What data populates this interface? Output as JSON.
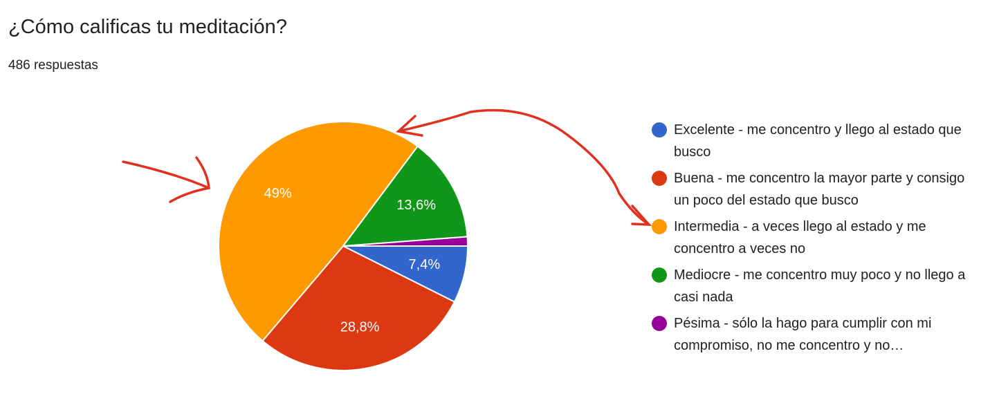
{
  "chart_data": {
    "type": "pie",
    "title": "¿Cómo calificas tu meditación?",
    "subtitle": "486 respuestas",
    "categories": [
      "Excelente - me concentro y llego al estado que busco",
      "Buena - me concentro la mayor parte y consigo un poco del estado que busco",
      "Intermedia - a veces llego al estado y me concentro a veces no",
      "Mediocre - me concentro muy poco y no llego a casi nada",
      "Pésima - sólo la hago para cumplir con mi compromiso, no me concentro y no…"
    ],
    "values": [
      7.4,
      28.8,
      49,
      13.6,
      1.2
    ],
    "value_labels": [
      "7,4%",
      "28,8%",
      "49%",
      "13,6%",
      null
    ],
    "colors": [
      "#3366cc",
      "#dc3912",
      "#ff9900",
      "#109618",
      "#990099"
    ]
  }
}
